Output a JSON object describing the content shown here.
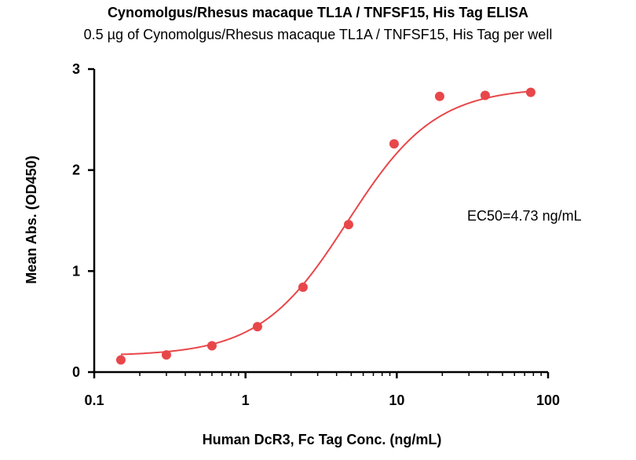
{
  "chart_data": {
    "type": "scatter",
    "title": "Cynomolgus/Rhesus macaque TL1A / TNFSF15, His Tag  ELISA",
    "subtitle": "0.5 µg of Cynomolgus/Rhesus macaque TL1A / TNFSF15, His Tag  per well",
    "xlabel": "Human DcR3, Fc Tag Conc. (ng/mL)",
    "ylabel": "Mean Abs. (OD450)",
    "x_scale": "log",
    "xlim": [
      0.1,
      100
    ],
    "ylim": [
      0,
      3
    ],
    "x_ticks": [
      "0.1",
      "1",
      "10",
      "100"
    ],
    "x_tick_values": [
      0.1,
      1,
      10,
      100
    ],
    "y_ticks": [
      "0",
      "1",
      "2",
      "3"
    ],
    "y_tick_values": [
      0,
      1,
      2,
      3
    ],
    "grid": false,
    "annotation": "EC50=4.73 ng/mL",
    "color": "#e8474a",
    "series": [
      {
        "x": [
          0.15,
          0.3,
          0.6,
          1.2,
          2.4,
          4.8,
          9.6,
          19.2,
          38.4,
          76.8
        ],
        "y": [
          0.12,
          0.17,
          0.26,
          0.45,
          0.84,
          1.46,
          2.26,
          2.73,
          2.74,
          2.77
        ]
      }
    ],
    "fit": {
      "bottom": 0.16,
      "top": 2.82,
      "ec50": 4.73,
      "hill": 1.5
    }
  }
}
